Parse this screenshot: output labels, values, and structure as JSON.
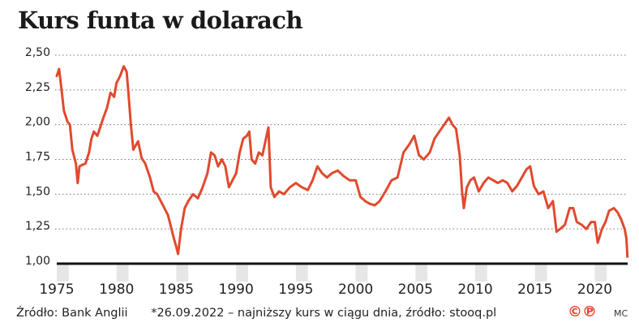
{
  "title": "Kurs funta w dolarach",
  "footer": {
    "source": "Źródło: Bank Anglii",
    "note": "*26.09.2022 – najniższy kurs w ciągu dnia, źródło: stooq.pl",
    "logo": "©℗",
    "credit": "MC"
  },
  "colors": {
    "line": "#e04a2e",
    "grid": "#777777",
    "axis": "#111111",
    "shade": "#e6e6e6"
  },
  "chart_data": {
    "type": "line",
    "title": "Kurs funta w dolarach",
    "xlabel": "",
    "ylabel": "",
    "xlim": [
      1975,
      2022.75
    ],
    "ylim": [
      1.0,
      2.5
    ],
    "grid": true,
    "y_ticks": [
      "1,00",
      "1,25",
      "1,50",
      "1,75",
      "2,00",
      "2,25",
      "2,50"
    ],
    "x_ticks": [
      "1975",
      "1980",
      "1985",
      "1990",
      "1995",
      "2000",
      "2005",
      "2010",
      "2015",
      "2020"
    ],
    "shaded_years": [
      1975,
      1980,
      1985,
      1990,
      1995,
      2000,
      2005,
      2010,
      2015,
      2020
    ],
    "series": [
      {
        "x": [
          1975.0,
          1975.2,
          1975.4,
          1975.6,
          1975.9,
          1976.1,
          1976.3,
          1976.6,
          1976.75,
          1976.9,
          1977.1,
          1977.4,
          1977.7,
          1977.9,
          1978.1,
          1978.4,
          1978.7,
          1978.9,
          1979.2,
          1979.5,
          1979.8,
          1980.0,
          1980.3,
          1980.6,
          1980.85,
          1981.0,
          1981.2,
          1981.4,
          1981.6,
          1981.8,
          1982.1,
          1982.4,
          1982.8,
          1983.1,
          1983.4,
          1983.7,
          1984.0,
          1984.3,
          1984.6,
          1984.8,
          1985.0,
          1985.15,
          1985.4,
          1985.7,
          1986.0,
          1986.4,
          1986.8,
          1987.2,
          1987.6,
          1987.9,
          1988.2,
          1988.5,
          1988.8,
          1989.1,
          1989.4,
          1989.7,
          1990.0,
          1990.3,
          1990.6,
          1990.9,
          1991.1,
          1991.3,
          1991.6,
          1991.9,
          1992.2,
          1992.5,
          1992.7,
          1992.9,
          1993.2,
          1993.6,
          1994.0,
          1994.5,
          1995.0,
          1995.5,
          1996.0,
          1996.4,
          1996.8,
          1997.2,
          1997.6,
          1998.0,
          1998.5,
          1999.0,
          1999.5,
          2000.0,
          2000.4,
          2000.8,
          2001.2,
          2001.6,
          2002.0,
          2002.5,
          2003.0,
          2003.5,
          2004.0,
          2004.5,
          2004.9,
          2005.3,
          2005.7,
          2006.2,
          2006.6,
          2007.0,
          2007.4,
          2007.8,
          2008.1,
          2008.4,
          2008.7,
          2008.9,
          2009.05,
          2009.3,
          2009.6,
          2009.9,
          2010.3,
          2010.7,
          2011.1,
          2011.5,
          2011.9,
          2012.3,
          2012.7,
          2013.1,
          2013.5,
          2013.9,
          2014.3,
          2014.6,
          2014.9,
          2015.3,
          2015.7,
          2016.1,
          2016.5,
          2016.8,
          2017.1,
          2017.5,
          2017.9,
          2018.2,
          2018.5,
          2018.9,
          2019.3,
          2019.7,
          2020.0,
          2020.25,
          2020.6,
          2020.9,
          2021.2,
          2021.6,
          2021.9,
          2022.2,
          2022.5,
          2022.65,
          2022.73
        ],
        "y": [
          2.35,
          2.4,
          2.25,
          2.1,
          2.02,
          2.0,
          1.82,
          1.72,
          1.58,
          1.7,
          1.71,
          1.72,
          1.8,
          1.9,
          1.95,
          1.92,
          2.0,
          2.05,
          2.12,
          2.23,
          2.2,
          2.3,
          2.35,
          2.42,
          2.38,
          2.22,
          2.0,
          1.82,
          1.85,
          1.88,
          1.76,
          1.72,
          1.62,
          1.52,
          1.5,
          1.45,
          1.4,
          1.35,
          1.25,
          1.18,
          1.12,
          1.07,
          1.25,
          1.4,
          1.45,
          1.5,
          1.47,
          1.55,
          1.65,
          1.8,
          1.78,
          1.7,
          1.75,
          1.7,
          1.55,
          1.6,
          1.65,
          1.8,
          1.9,
          1.92,
          1.95,
          1.75,
          1.72,
          1.8,
          1.78,
          1.9,
          1.98,
          1.55,
          1.48,
          1.52,
          1.5,
          1.55,
          1.58,
          1.55,
          1.53,
          1.6,
          1.7,
          1.65,
          1.62,
          1.65,
          1.67,
          1.63,
          1.6,
          1.6,
          1.48,
          1.45,
          1.43,
          1.42,
          1.45,
          1.52,
          1.6,
          1.62,
          1.8,
          1.86,
          1.92,
          1.78,
          1.75,
          1.8,
          1.9,
          1.95,
          2.0,
          2.05,
          2.0,
          1.97,
          1.78,
          1.52,
          1.4,
          1.55,
          1.6,
          1.62,
          1.52,
          1.58,
          1.62,
          1.6,
          1.58,
          1.6,
          1.58,
          1.52,
          1.56,
          1.62,
          1.68,
          1.7,
          1.56,
          1.5,
          1.52,
          1.4,
          1.45,
          1.23,
          1.25,
          1.28,
          1.4,
          1.4,
          1.3,
          1.28,
          1.25,
          1.3,
          1.3,
          1.15,
          1.25,
          1.3,
          1.38,
          1.4,
          1.37,
          1.32,
          1.25,
          1.18,
          1.05
        ]
      }
    ]
  }
}
